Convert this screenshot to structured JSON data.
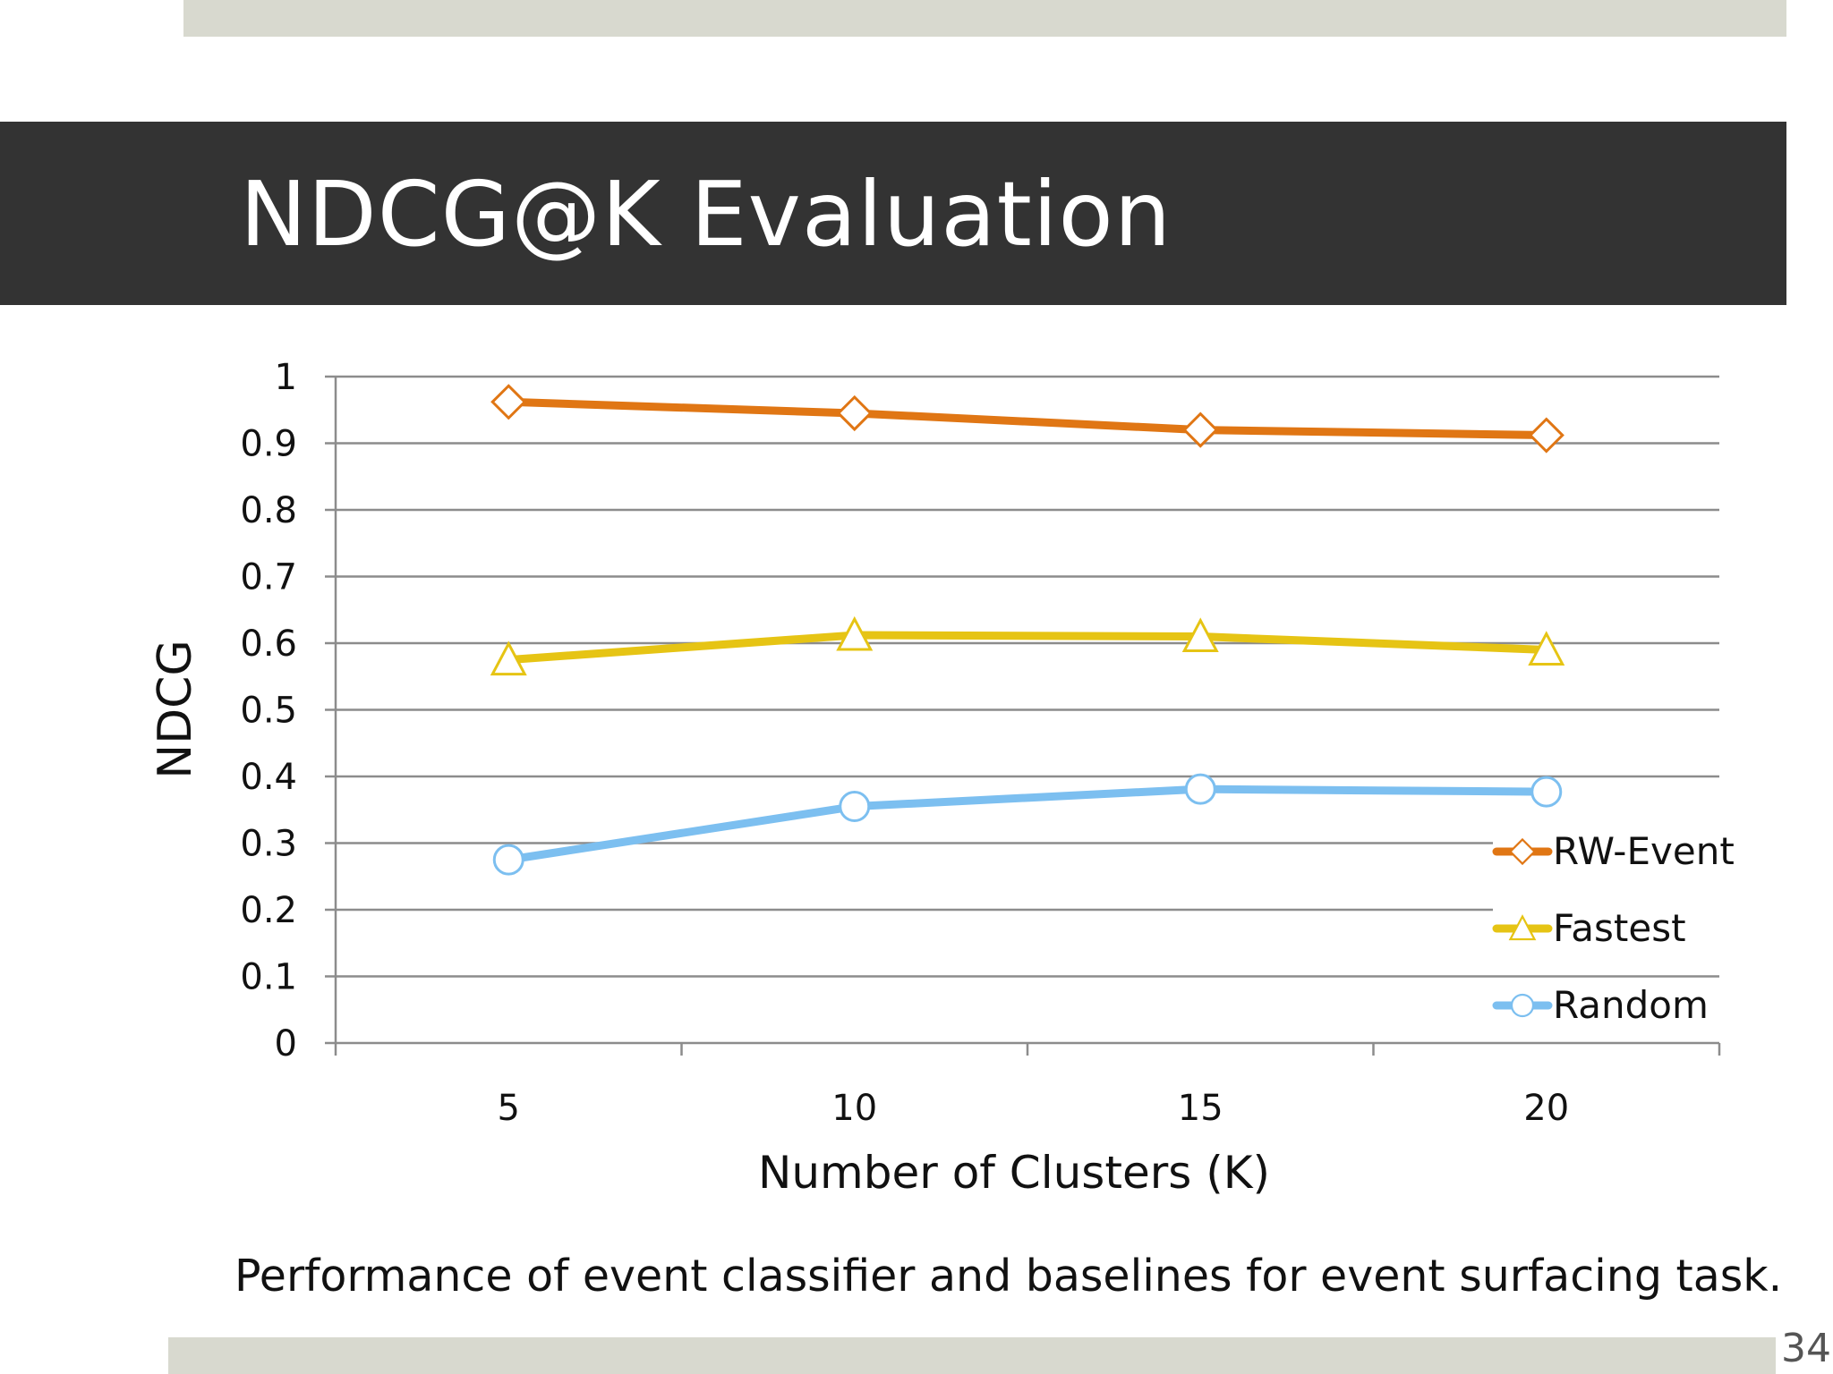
{
  "slide": {
    "title": "NDCG@K Evaluation",
    "caption": "Performance of event classifier and baselines for event surfacing task.",
    "page_number": "34"
  },
  "colors": {
    "title_bar": "#333333",
    "accent_band": "#d8d9cf",
    "gridline": "#8c8c8c"
  },
  "chart_data": {
    "type": "line",
    "title": "",
    "xlabel": "Number of Clusters (K)",
    "ylabel": "NDCG",
    "categories": [
      "5",
      "10",
      "15",
      "20"
    ],
    "ylim": [
      0,
      1
    ],
    "yticks": [
      "0",
      "0.1",
      "0.2",
      "0.3",
      "0.4",
      "0.5",
      "0.6",
      "0.7",
      "0.8",
      "0.9",
      "1"
    ],
    "grid": true,
    "legend_position": "bottom-right",
    "series": [
      {
        "name": "RW-Event",
        "values": [
          0.962,
          0.945,
          0.92,
          0.912
        ],
        "color": "#e07614",
        "marker": "diamond"
      },
      {
        "name": "Fastest",
        "values": [
          0.575,
          0.612,
          0.61,
          0.59
        ],
        "color": "#e6c414",
        "marker": "triangle"
      },
      {
        "name": "Random",
        "values": [
          0.275,
          0.355,
          0.381,
          0.377
        ],
        "color": "#7cbff0",
        "marker": "circle"
      }
    ]
  }
}
